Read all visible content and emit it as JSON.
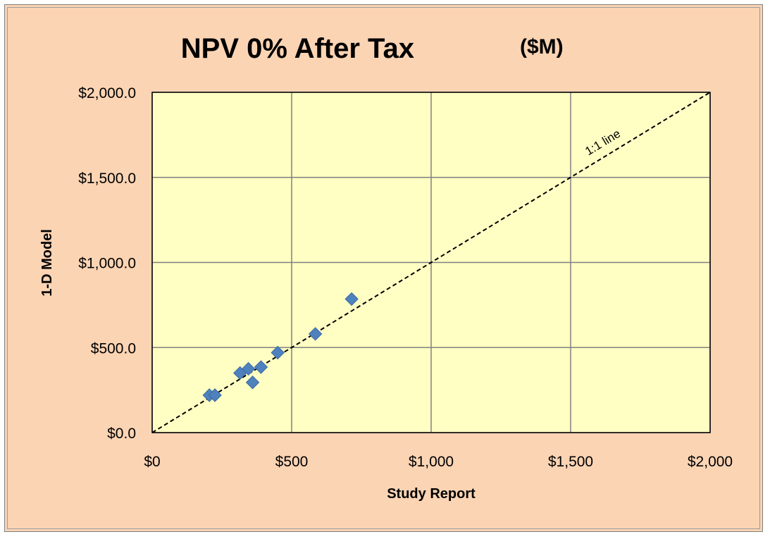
{
  "chart_data": {
    "type": "scatter",
    "title": "NPV 0% After Tax",
    "title_unit": "($M)",
    "xlabel": "Study Report",
    "ylabel": "1-D Model",
    "xlim": [
      0,
      2000
    ],
    "ylim": [
      0,
      2000
    ],
    "x_ticks": [
      0,
      500,
      1000,
      1500,
      2000
    ],
    "x_tick_labels": [
      "$0",
      "$500",
      "$1,000",
      "$1,500",
      "$2,000"
    ],
    "y_ticks": [
      0,
      500,
      1000,
      1500,
      2000
    ],
    "y_tick_labels": [
      "$0.0",
      "$500.0",
      "$1,000.0",
      "$1,500.0",
      "$2,000.0"
    ],
    "grid": true,
    "legend": "none",
    "marker": "diamond",
    "series": [
      {
        "x": [
          205,
          225,
          315,
          345,
          360,
          390,
          450,
          585,
          715
        ],
        "y": [
          220,
          220,
          350,
          375,
          295,
          385,
          470,
          580,
          785
        ]
      }
    ],
    "reference_line": {
      "from": [
        0,
        0
      ],
      "to": [
        2000,
        2000
      ],
      "style": "dashed"
    },
    "annotations": [
      {
        "text": "1:1 line"
      }
    ],
    "colors": {
      "plot_background": "#ffffc4",
      "chart_background": "#fbd4b4",
      "marker": "#4f81bd",
      "grid": "#808080"
    }
  }
}
